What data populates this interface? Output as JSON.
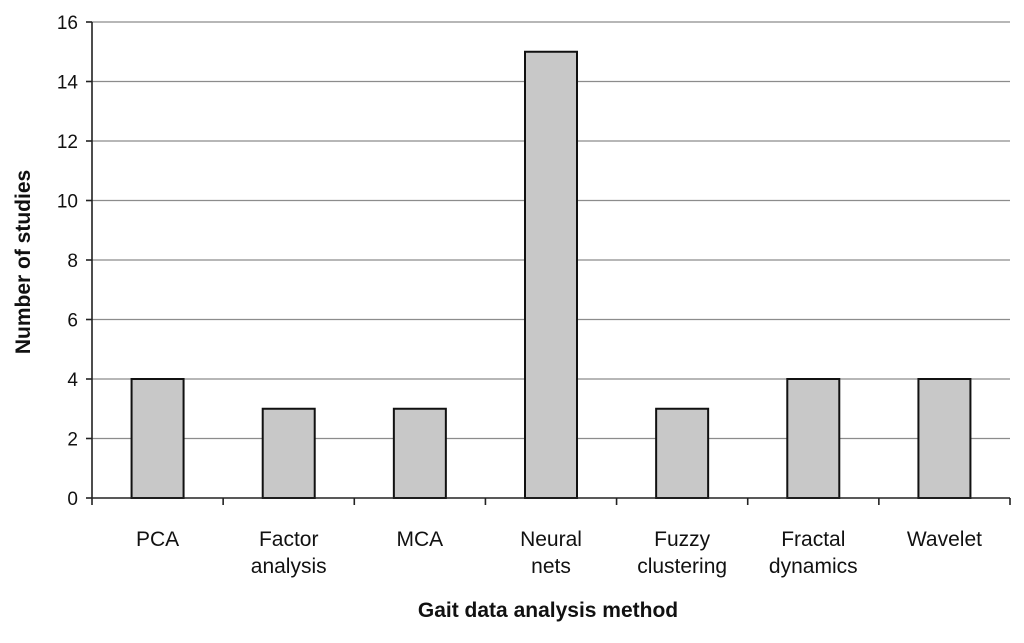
{
  "chart_data": {
    "type": "bar",
    "title": "",
    "xlabel": "Gait data analysis method",
    "ylabel": "Number of studies",
    "categories": [
      [
        "PCA"
      ],
      [
        "Factor",
        "analysis"
      ],
      [
        "MCA"
      ],
      [
        "Neural",
        "nets"
      ],
      [
        "Fuzzy",
        "clustering"
      ],
      [
        "Fractal",
        "dynamics"
      ],
      [
        "Wavelet"
      ]
    ],
    "values": [
      4,
      3,
      3,
      15,
      3,
      4,
      4
    ],
    "ylim": [
      0,
      16
    ],
    "yticks": [
      0,
      2,
      4,
      6,
      8,
      10,
      12,
      14,
      16
    ],
    "grid": true,
    "legend": "none",
    "colors": {
      "bar_fill": "#c8c8c8",
      "bar_stroke": "#111111",
      "grid": "#8c8c8c"
    }
  }
}
